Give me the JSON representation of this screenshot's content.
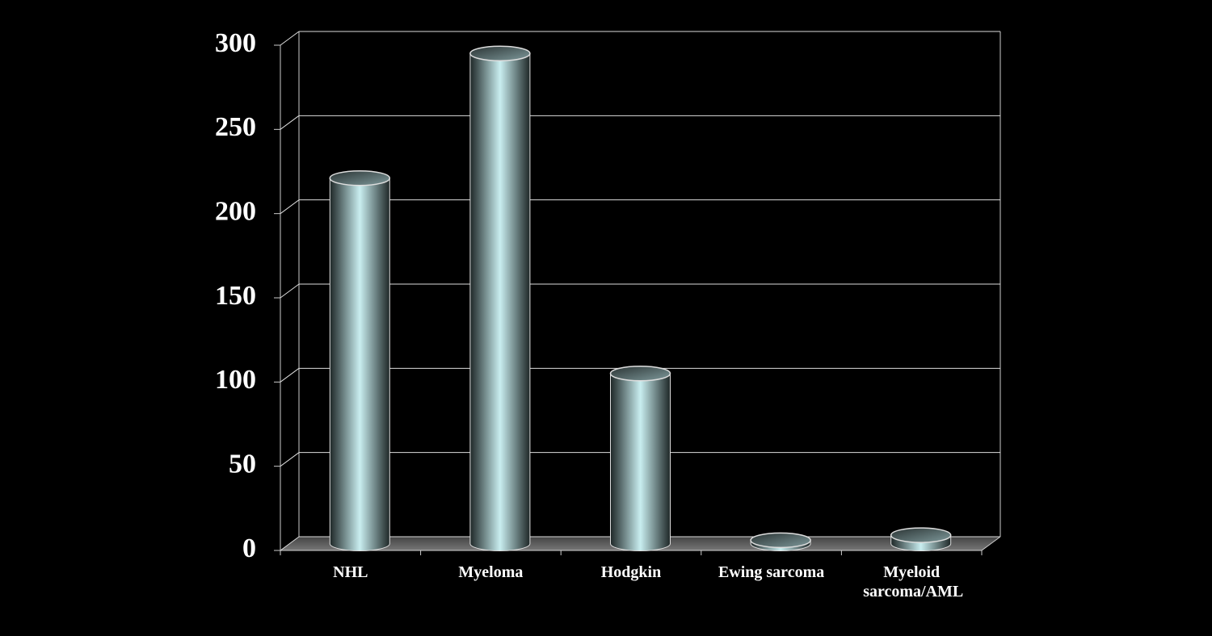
{
  "chart_data": {
    "type": "cylinder",
    "categories": [
      "NHL",
      "Myeloma",
      "Hodgkin",
      "Ewing sarcoma",
      "Myeloid sarcoma/AML"
    ],
    "values": [
      217,
      291,
      101,
      2,
      5
    ],
    "ylim": [
      0,
      300
    ],
    "yticks": [
      0,
      50,
      100,
      150,
      200,
      250,
      300
    ],
    "grid": true
  }
}
